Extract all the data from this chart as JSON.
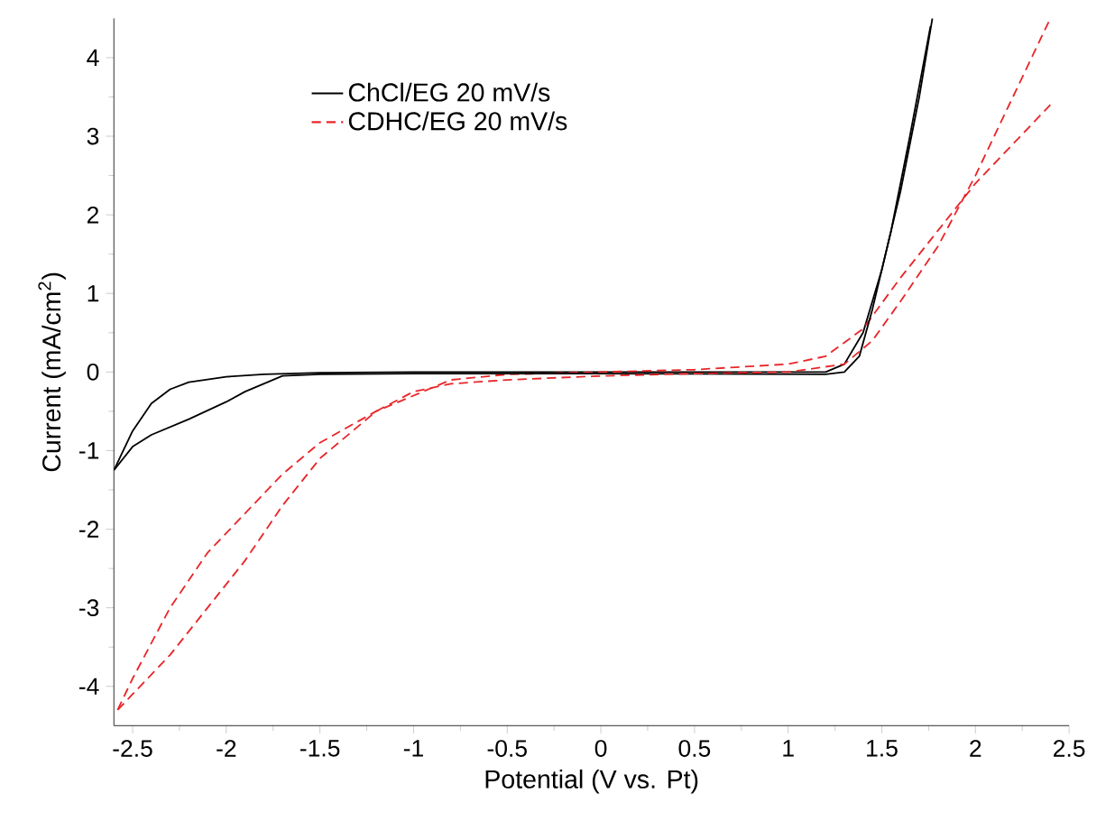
{
  "chart_data": {
    "type": "line",
    "xlabel": "Potential (V vs. Pt)",
    "ylabel": "Current (mA/cm$^{2}$)",
    "xlim": [
      -2.6,
      2.5
    ],
    "ylim": [
      -4.5,
      4.5
    ],
    "xticks": [
      -2.5,
      -2,
      -1.5,
      -1,
      -0.5,
      0,
      0.5,
      1,
      1.5,
      2,
      2.5
    ],
    "yticks": [
      -4,
      -3,
      -2,
      -1,
      0,
      1,
      2,
      3,
      4
    ],
    "legend": "top left",
    "grid": false,
    "marker": "none",
    "series": [
      {
        "name": "ChCl/EG 20 mV/s",
        "color": "#000000",
        "line_style": "solid",
        "x": [
          -2.6,
          -2.5,
          -2.4,
          -2.3,
          -2.2,
          -2.0,
          -1.8,
          -1.5,
          -1.0,
          0,
          1.0,
          1.2,
          1.3,
          1.4,
          1.5,
          1.6,
          1.7,
          1.77
        ],
        "values": [
          -1.25,
          -0.75,
          -0.4,
          -0.22,
          -0.13,
          -0.06,
          -0.03,
          -0.01,
          0.0,
          0.0,
          0.0,
          0.0,
          0.1,
          0.5,
          1.3,
          2.3,
          3.5,
          4.5
        ]
      },
      {
        "name": "CDHC/EG 20 mV/s",
        "color": "#e8262a",
        "line_style": "dashed",
        "x": [
          -2.58,
          -2.5,
          -2.3,
          -2.1,
          -1.9,
          -1.7,
          -1.5,
          -1.2,
          -1.0,
          -0.8,
          -0.5,
          0,
          0.5,
          1.0,
          1.2,
          1.4,
          1.6,
          1.8,
          2.0,
          2.2,
          2.4
        ],
        "values": [
          -4.3,
          -3.9,
          -3.0,
          -2.3,
          -1.8,
          -1.3,
          -0.9,
          -0.5,
          -0.3,
          -0.1,
          -0.03,
          0.0,
          0.03,
          0.1,
          0.2,
          0.55,
          1.2,
          1.8,
          2.4,
          2.9,
          3.4
        ]
      },
      {
        "color": "#000000",
        "line_style": "solid",
        "x": [
          -2.6,
          -2.5,
          -2.4,
          -2.2,
          -2.0,
          -1.9,
          -1.7,
          -1.5,
          -1.0,
          0,
          1.2,
          1.3,
          1.38,
          1.45,
          1.55,
          1.65,
          1.76
        ],
        "values": [
          -1.25,
          -0.95,
          -0.8,
          -0.6,
          -0.38,
          -0.25,
          -0.05,
          -0.03,
          -0.02,
          -0.02,
          -0.03,
          0.0,
          0.2,
          0.8,
          1.8,
          3.0,
          4.4
        ]
      },
      {
        "color": "#e8262a",
        "line_style": "dashed",
        "x": [
          -2.58,
          -2.5,
          -2.3,
          -2.1,
          -1.9,
          -1.7,
          -1.5,
          -1.2,
          -1.0,
          -0.8,
          -0.5,
          0,
          0.5,
          1.0,
          1.3,
          1.45,
          1.6,
          1.8,
          2.0,
          2.2,
          2.4
        ],
        "values": [
          -4.3,
          -4.1,
          -3.6,
          -3.0,
          -2.4,
          -1.7,
          -1.1,
          -0.5,
          -0.25,
          -0.15,
          -0.1,
          -0.05,
          -0.02,
          0.0,
          0.1,
          0.4,
          0.9,
          1.6,
          2.5,
          3.5,
          4.5
        ]
      }
    ]
  }
}
